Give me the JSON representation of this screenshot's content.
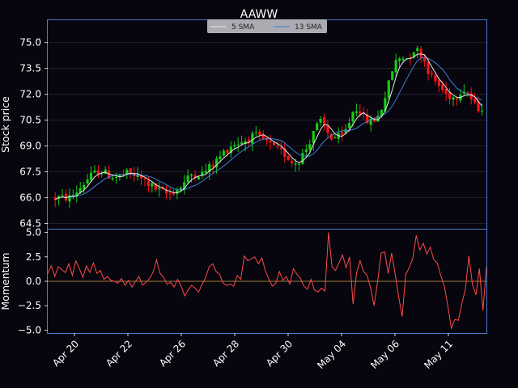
{
  "chart_data": [
    {
      "type": "candlestick",
      "title": "AAWW",
      "ylabel": "Stock price",
      "ylim": [
        64.2,
        76.3
      ],
      "yticks": [
        "64.5",
        "66.0",
        "67.5",
        "69.0",
        "70.5",
        "72.0",
        "73.5",
        "75.0"
      ],
      "ytick_values": [
        64.5,
        66.0,
        67.5,
        69.0,
        70.5,
        72.0,
        73.5,
        75.0
      ],
      "grid": true,
      "legend_position": "top-center",
      "series": [
        {
          "name": "5 SMA",
          "color": "#e8e8e8"
        },
        {
          "name": "13 SMA",
          "color": "#3e7fd8"
        }
      ],
      "price_path_days": [
        0,
        0.6,
        1.3,
        2.0,
        2.6,
        3.2,
        3.8,
        4.3,
        5.0,
        5.9,
        6.6,
        7.4,
        8.2,
        8.9,
        9.7,
        10.3,
        10.9,
        11.7,
        12.4,
        13.1,
        13.8,
        14.5,
        15.0,
        15.4,
        16.0,
        16.4,
        16.9,
        17.5,
        18.3,
        18.7,
        19.0,
        19.4,
        19.8,
        20.3,
        20.8,
        21.4,
        21.8,
        22.3,
        22.7,
        23.1,
        23.5,
        23.8,
        24.3,
        24.8,
        25.3,
        25.9,
        26.4,
        26.8,
        27.3,
        27.8
      ],
      "price_path_values": [
        66.0,
        66.5,
        67.2,
        67.6,
        67.3,
        67.2,
        67.4,
        67.3,
        67.0,
        66.4,
        66.2,
        66.6,
        67.4,
        67.4,
        68.0,
        68.6,
        69.1,
        69.3,
        69.6,
        69.3,
        68.8,
        68.5,
        68.0,
        68.2,
        69.0,
        70.0,
        70.4,
        69.5,
        69.5,
        70.2,
        71.0,
        71.3,
        70.5,
        70.4,
        70.8,
        72.5,
        73.8,
        74.2,
        74.1,
        74.6,
        74.5,
        74.0,
        73.0,
        72.5,
        72.0,
        71.8,
        72.4,
        72.0,
        71.2,
        71.3
      ],
      "candles": {
        "count": 120,
        "day_span": [
          -1.0,
          27.7
        ],
        "volatility": 0.32,
        "up_color": "#14cc14",
        "down_color": "#ff1414"
      },
      "xticks": [
        "Apr 20",
        "Apr 22",
        "Apr 26",
        "Apr 28",
        "Apr 30",
        "May 04",
        "May 06",
        "May 11"
      ],
      "xtick_days": [
        1,
        3,
        5,
        7,
        9,
        11,
        13,
        15
      ]
    },
    {
      "type": "line",
      "ylabel": "Momentum",
      "ylim": [
        -5.3,
        5.3
      ],
      "yticks": [
        "5.0",
        "2.5",
        "0.0",
        "−2.5",
        "−5.0"
      ],
      "ytick_values": [
        5.0,
        2.5,
        0.0,
        -2.5,
        -5.0
      ],
      "grid": false,
      "series": [
        {
          "color": "#ff4a4a",
          "values": [
            0.8,
            1.6,
            0.5,
            1.5,
            1.2,
            0.9,
            1.8,
            0.6,
            2.1,
            1.3,
            0.4,
            1.6,
            0.9,
            1.9,
            0.8,
            1.1,
            0.2,
            0.5,
            0.1,
            0.0,
            -0.2,
            0.3,
            -0.4,
            0.1,
            -0.6,
            0.0,
            0.5,
            -0.4,
            -0.1,
            0.3,
            0.9,
            2.2,
            0.8,
            0.4,
            -0.3,
            -0.1,
            -0.6,
            0.2,
            -0.5,
            -1.5,
            -0.9,
            -0.4,
            -0.7,
            -1.1,
            -0.3,
            0.4,
            1.5,
            1.8,
            1.0,
            0.7,
            -0.2,
            -0.4,
            -0.3,
            -0.5,
            0.6,
            0.2,
            2.6,
            2.1,
            2.3,
            2.5,
            1.8,
            2.4,
            1.1,
            0.2,
            -0.5,
            -0.2,
            1.0,
            0.1,
            0.5,
            -0.3,
            1.3,
            0.7,
            0.3,
            -0.5,
            -0.8,
            0.2,
            -0.9,
            -1.1,
            -0.7,
            -1.0,
            5.0,
            1.5,
            1.1,
            1.9,
            2.7,
            1.4,
            2.5,
            -2.3,
            0.9,
            2.1,
            1.0,
            0.6,
            -0.7,
            -2.5,
            0.0,
            2.9,
            3.0,
            0.8,
            2.9,
            0.7,
            -1.6,
            -3.6,
            0.7,
            1.4,
            2.3,
            4.7,
            3.2,
            3.9,
            2.8,
            3.5,
            2.2,
            1.9,
            0.6,
            -0.5,
            -2.5,
            -4.8,
            -3.9,
            -4.0,
            -2.3,
            -0.8,
            2.6,
            -0.3,
            -1.4,
            1.3,
            -3.0,
            1.5
          ]
        }
      ],
      "hline": 0.0,
      "hline_color": "#d4a64c"
    }
  ]
}
